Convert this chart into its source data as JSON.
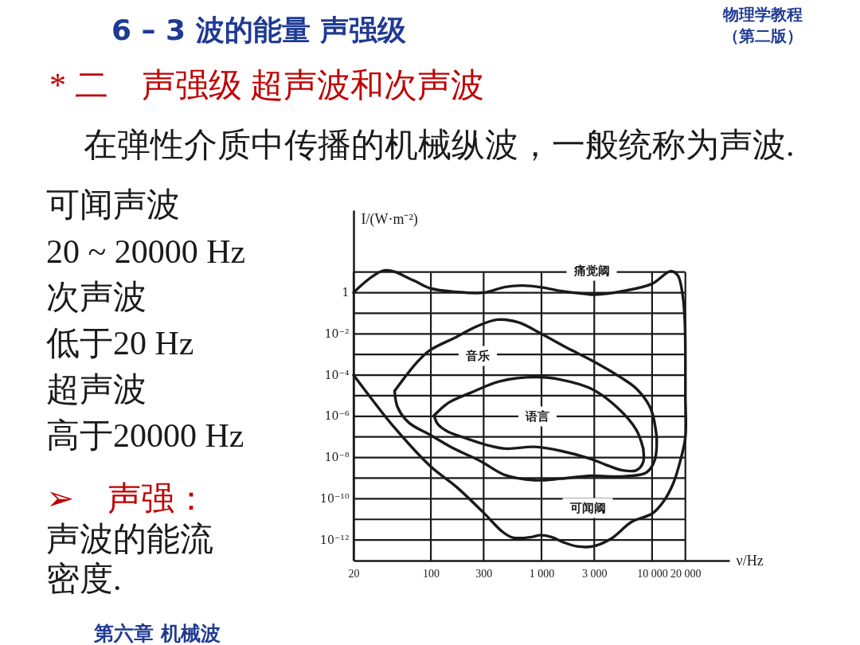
{
  "chart_data": {
    "type": "line",
    "title": "6 – 3 波的能量 声强级",
    "subtitle": "* 二　声强级 超声波和次声波",
    "xlabel": "ν/Hz",
    "ylabel": "I/(W·m⁻²)",
    "log": "xy",
    "grid": true,
    "xlim": [
      20,
      50000
    ],
    "ylim": [
      1e-13,
      10000
    ],
    "xticks": [
      20,
      100,
      300,
      {
        "value": 1000,
        "label": "1 000"
      },
      {
        "value": 3000,
        "label": "3 000"
      },
      {
        "value": 10000,
        "label": "10 000"
      },
      {
        "value": 20000,
        "label": "20 000"
      }
    ],
    "yticks": [
      {
        "value": 10,
        "label": null
      },
      1,
      {
        "value": 0.1,
        "label": null
      },
      {
        "value": 0.01,
        "label": "10⁻²"
      },
      {
        "value": 0.001,
        "label": null
      },
      {
        "value": 0.0001,
        "label": "10⁻⁴"
      },
      {
        "value": 1e-05,
        "label": null
      },
      {
        "value": 1e-06,
        "label": "10⁻⁶"
      },
      {
        "value": 1e-07,
        "label": null
      },
      {
        "value": 1e-08,
        "label": "10⁻⁸"
      },
      {
        "value": 1e-09,
        "label": null
      },
      {
        "value": 1e-10,
        "label": "10⁻¹⁰"
      },
      {
        "value": 1e-11,
        "label": null
      },
      {
        "value": 1e-12,
        "label": "10⁻¹²"
      }
    ],
    "series": [
      {
        "color": "#1a1a1a",
        "x": [
          20,
          38,
          69,
          100,
          167,
          300,
          470,
          680,
          1000,
          1500,
          2500,
          3000,
          5500,
          10000,
          14700,
          17100,
          19000,
          19800,
          20000,
          20000,
          20000,
          18000,
          15400,
          12500,
          10000,
          6550,
          4200,
          2900,
          2100,
          1570,
          1230,
          970,
          820,
          550,
          440,
          300,
          170,
          100,
          46,
          30,
          20
        ],
        "values": [
          1,
          12,
          4,
          1.6,
          1.1,
          1,
          1.9,
          2.2,
          1.8,
          1.2,
          0.87,
          0.8,
          1.2,
          2.7,
          11,
          6.8,
          0.6,
          0.032,
          0.001,
          1e-05,
          1e-07,
          7e-09,
          5e-10,
          6.6e-11,
          1.9e-11,
          7.6e-12,
          1.1e-12,
          4.9e-13,
          4.9e-13,
          7.8e-13,
          1.4e-12,
          1.7e-12,
          1.4e-12,
          1.3e-12,
          2.6e-12,
          2.1e-11,
          3.8e-10,
          3.6e-09,
          3.2e-07,
          5.7e-06,
          0.0001
        ]
      },
      {
        "color": "#1a1a1a",
        "x": [
          47,
          61,
          77,
          98,
          170,
          260,
          400,
          620,
          970,
          1700,
          2900,
          5100,
          7200,
          9700,
          11000
        ],
        "values": [
          1.7e-05,
          0.00011,
          0.00049,
          0.0016,
          0.0071,
          0.023,
          0.049,
          0.036,
          0.011,
          0.0021,
          0.00049,
          8.3e-05,
          2.2e-05,
          2.4e-06,
          1e-07
        ]
      },
      {
        "color": "#1a1a1a",
        "x": [
          11000,
          10600,
          8900,
          5000,
          2800,
          1500,
          860,
          470,
          280,
          160,
          100,
          63,
          50,
          47
        ],
        "values": [
          1e-07,
          8e-09,
          1.9e-09,
          1.2e-09,
          1.3e-09,
          9.4e-10,
          8e-10,
          1.4e-09,
          6.8e-09,
          2.8e-08,
          1.2e-07,
          5e-07,
          2.8e-06,
          1.7e-05
        ]
      },
      {
        "color": "#1a1a1a",
        "x": [
          107,
          145,
          230,
          420,
          900,
          1500,
          2800,
          4800,
          7200,
          8300
        ],
        "values": [
          1.1e-06,
          4.6e-06,
          1.4e-05,
          5e-05,
          8e-05,
          6e-05,
          2.2e-05,
          2.8e-06,
          2.2e-07,
          2.8e-08
        ]
      },
      {
        "color": "#1a1a1a",
        "x": [
          8300,
          8300,
          7200,
          5400,
          3800,
          2800,
          1500,
          860,
          470,
          330,
          210,
          140,
          115,
          107
        ],
        "values": [
          2.8e-08,
          5.8e-09,
          2.4e-09,
          2.4e-09,
          4.5e-09,
          8.5e-09,
          2.1e-08,
          3.3e-08,
          2.7e-08,
          3.9e-08,
          8.5e-08,
          1.9e-07,
          4.3e-07,
          1.1e-06
        ]
      }
    ],
    "annotations": [
      "物理学教程",
      "（第二版）",
      "在弹性介质中传播的机械纵波，一般统称为声波.",
      "可闻声波",
      "20 ~ 20000 Hz",
      "次声波",
      "低于20 Hz",
      "超声波",
      "高于20000 Hz",
      "➢　声强：",
      "声波的能流",
      "密度.",
      "痛觉阈",
      "音乐",
      "语言",
      "可闻阈",
      "第六章 机械波"
    ]
  }
}
